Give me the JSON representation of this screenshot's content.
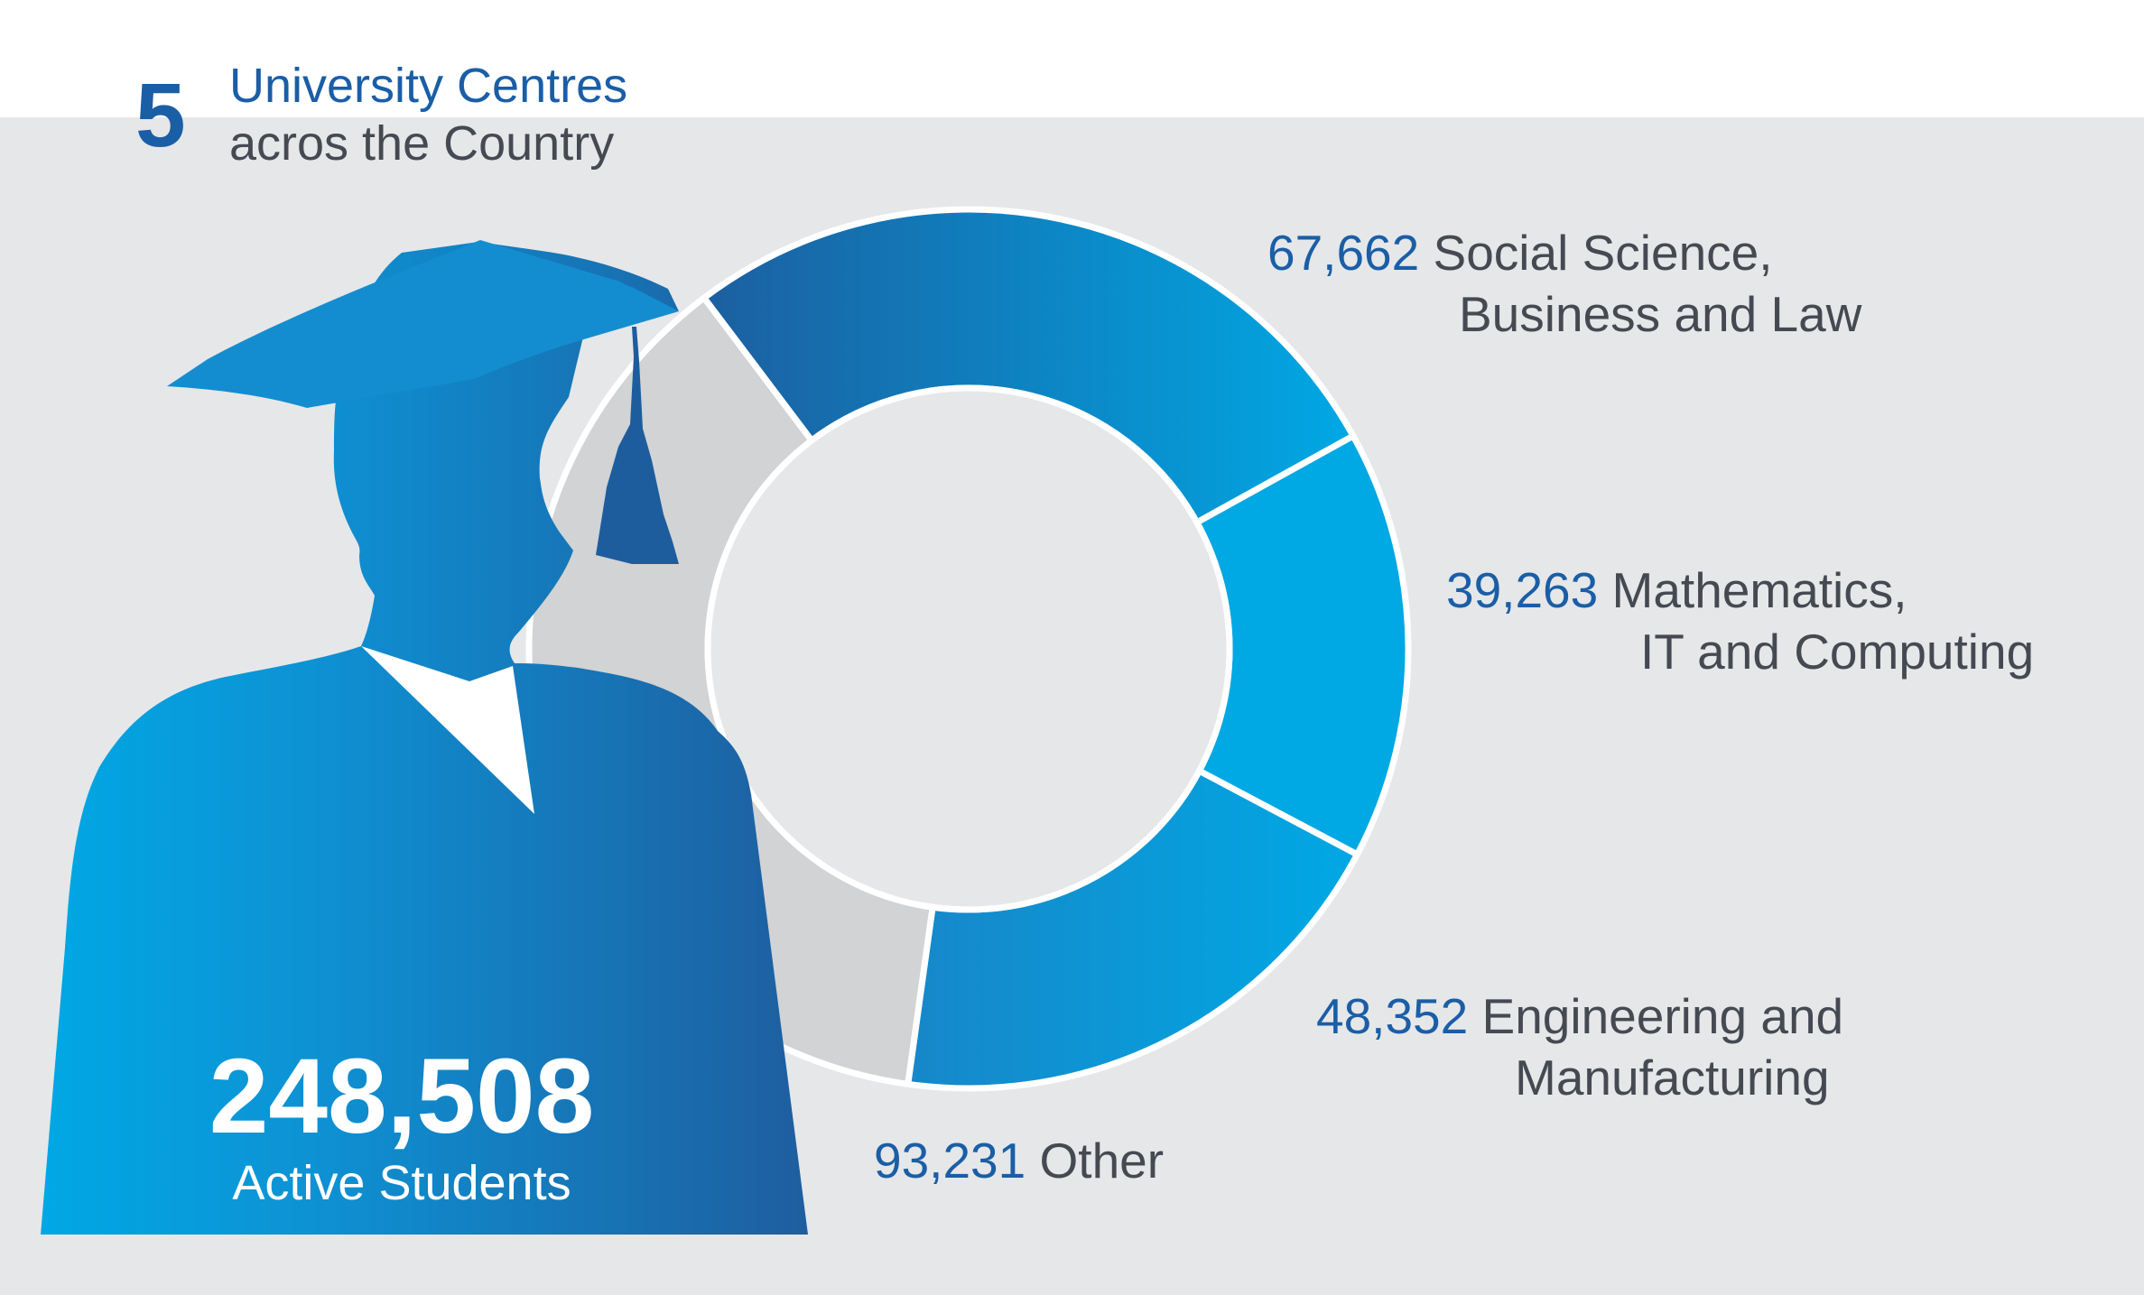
{
  "header": {
    "count": "5",
    "line1": "University Centres",
    "line2": "acros the Country"
  },
  "total": {
    "value": "248,508",
    "label": "Active Students"
  },
  "colors": {
    "accent": "#1a5ea6",
    "segment": "#00a8e4",
    "other": "#d1d3d4",
    "background": "#e6e7e9",
    "text": "#454a52"
  },
  "chart_data": {
    "type": "pie",
    "donut": true,
    "slices": [
      {
        "value": 67662,
        "value_label": "67,662",
        "label_line1": "Social Science,",
        "label_line2": "Business and Law"
      },
      {
        "value": 39263,
        "value_label": "39,263",
        "label_line1": "Mathematics,",
        "label_line2": "IT and Computing"
      },
      {
        "value": 48352,
        "value_label": "48,352",
        "label_line1": "Engineering and",
        "label_line2": "Manufacturing"
      },
      {
        "value": 93231,
        "value_label": "93,231",
        "label_line1": "Other",
        "label_line2": ""
      }
    ]
  }
}
